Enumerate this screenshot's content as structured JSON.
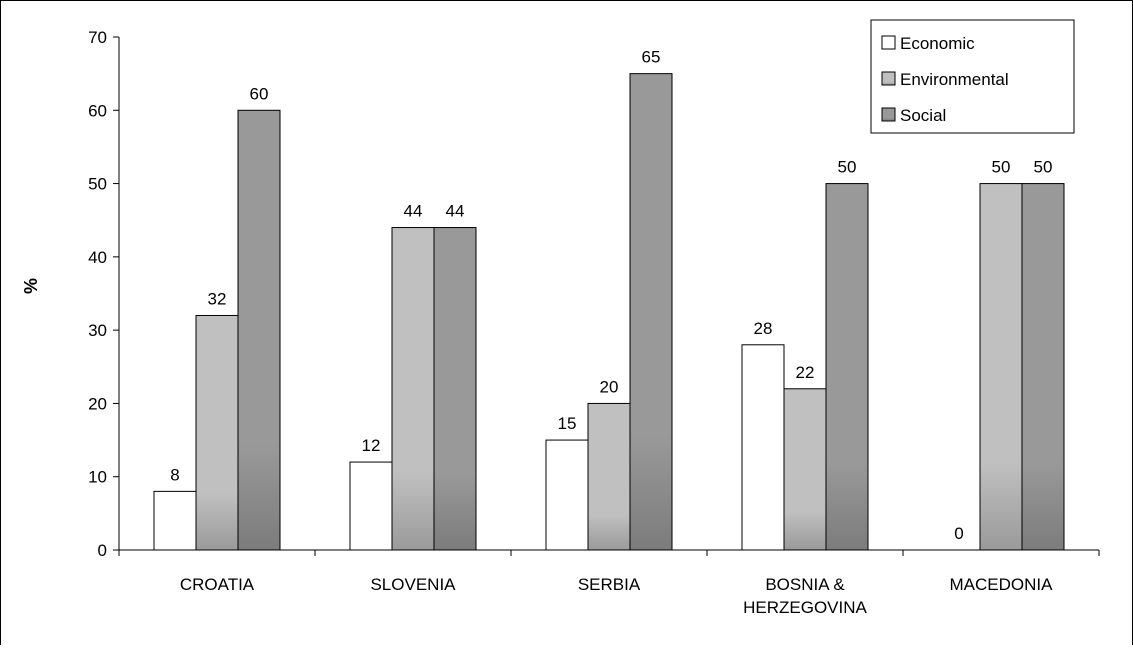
{
  "chart_data": {
    "type": "bar",
    "categories": [
      [
        "CROATIA"
      ],
      [
        "SLOVENIA"
      ],
      [
        "SERBIA"
      ],
      [
        "BOSNIA &",
        "HERZEGOVINA"
      ],
      [
        "MACEDONIA"
      ]
    ],
    "series": [
      {
        "name": "Economic",
        "values": [
          8,
          12,
          15,
          28,
          0
        ],
        "color": "#ffffff"
      },
      {
        "name": "Environmental",
        "values": [
          32,
          44,
          20,
          22,
          50
        ],
        "color": "#c0c0c0"
      },
      {
        "name": "Social",
        "values": [
          60,
          44,
          65,
          50,
          50
        ],
        "color": "#999999"
      }
    ],
    "ylabel": "%",
    "xlabel": "",
    "ylim": [
      0,
      70
    ],
    "yticks": [
      0,
      10,
      20,
      30,
      40,
      50,
      60,
      70
    ],
    "legend_position": "top-right",
    "grid": false,
    "data_labels": true
  }
}
